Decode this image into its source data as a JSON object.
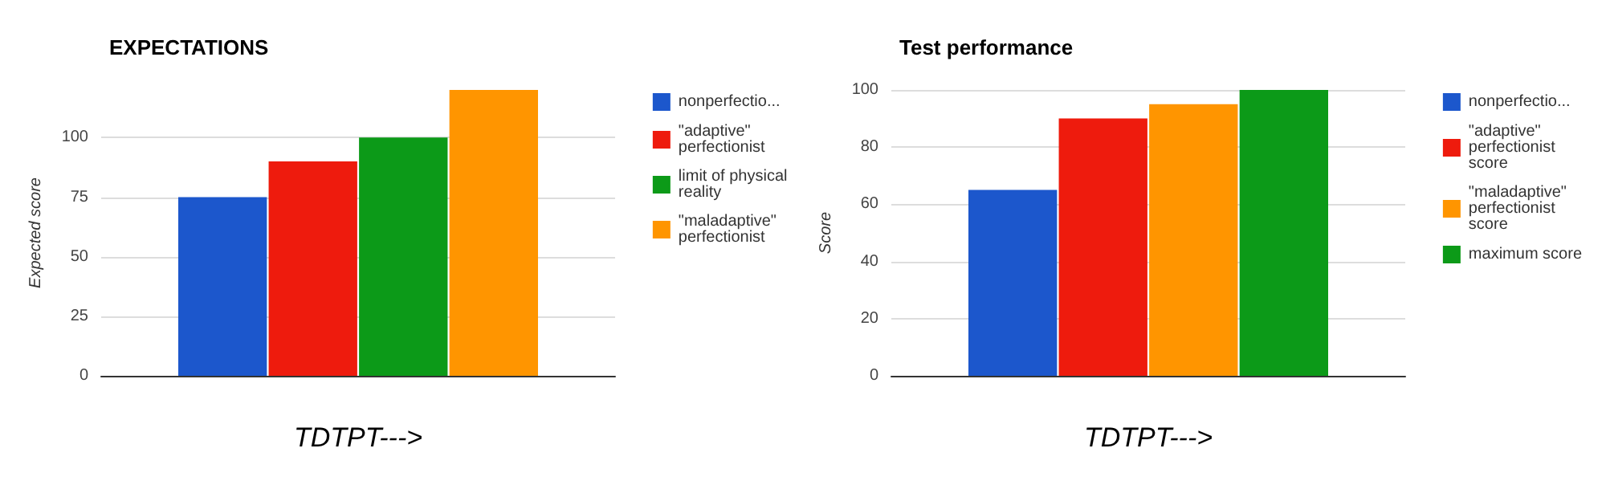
{
  "chart_data": [
    {
      "type": "bar",
      "title": "EXPECTATIONS",
      "ylabel": "Expected score",
      "xlabel": "TDTPT--->",
      "categories": [
        null
      ],
      "series": [
        {
          "name": "nonperfectio...",
          "color": "#1c57cc",
          "values": [
            75
          ]
        },
        {
          "name": "\"adaptive\" perfectionist",
          "color": "#ee1b0d",
          "values": [
            90
          ]
        },
        {
          "name": "limit of physical reality",
          "color": "#0c9a18",
          "values": [
            100
          ]
        },
        {
          "name": "\"maladaptive\" perfectionist",
          "color": "#ff9500",
          "values": [
            120
          ]
        }
      ],
      "ylim": [
        0,
        120
      ],
      "yticks": [
        0,
        25,
        50,
        75,
        100
      ],
      "grid": "y",
      "legend": "right"
    },
    {
      "type": "bar",
      "title": "Test performance",
      "ylabel": "Score",
      "xlabel": "TDTPT--->",
      "categories": [
        null
      ],
      "series": [
        {
          "name": "nonperfectio...",
          "color": "#1c57cc",
          "values": [
            65
          ]
        },
        {
          "name": "\"adaptive\" perfectionist score",
          "color": "#ee1b0d",
          "values": [
            90
          ]
        },
        {
          "name": "\"maladaptive\" perfectionist score",
          "color": "#ff9500",
          "values": [
            95
          ]
        },
        {
          "name": "maximum score",
          "color": "#0c9a18",
          "values": [
            100
          ]
        }
      ],
      "ylim": [
        0,
        100
      ],
      "yticks": [
        0,
        20,
        40,
        60,
        80,
        100
      ],
      "grid": "y",
      "legend": "right"
    }
  ]
}
